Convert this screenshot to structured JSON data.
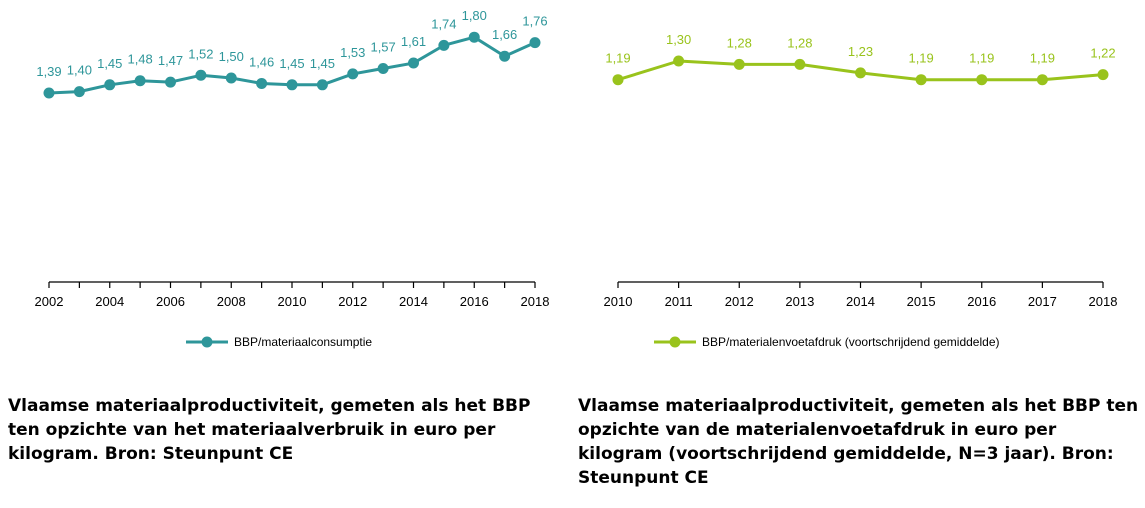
{
  "chart_data": [
    {
      "type": "line",
      "color": "#2e969a",
      "x": [
        "2002",
        "2003",
        "2004",
        "2005",
        "2006",
        "2007",
        "2008",
        "2009",
        "2010",
        "2011",
        "2012",
        "2013",
        "2014",
        "2015",
        "2016",
        "2017",
        "2018"
      ],
      "tick_labels": [
        "2002",
        "2004",
        "2006",
        "2008",
        "2010",
        "2012",
        "2014",
        "2016",
        "2018"
      ],
      "series": [
        {
          "name": "BBP/materiaalconsumptie",
          "values": [
            1.39,
            1.4,
            1.45,
            1.48,
            1.47,
            1.52,
            1.5,
            1.46,
            1.45,
            1.45,
            1.53,
            1.57,
            1.61,
            1.74,
            1.8,
            1.66,
            1.76
          ],
          "labels": [
            "1,39",
            "1,40",
            "1,45",
            "1,48",
            "1,47",
            "1,52",
            "1,50",
            "1,46",
            "1,45",
            "1,45",
            "1,53",
            "1,57",
            "1,61",
            "1,74",
            "1,80",
            "1,66",
            "1,76"
          ]
        }
      ],
      "ylim": [
        0,
        2.0
      ],
      "grid": false,
      "legend_position": "bottom",
      "caption": "Vlaamse materiaalproductiviteit, gemeten als het BBP ten opzichte van het materiaalverbruik in euro per kilogram. Bron: Steunpunt CE"
    },
    {
      "type": "line",
      "color": "#99c31c",
      "x": [
        "2010",
        "2011",
        "2012",
        "2013",
        "2014",
        "2015",
        "2016",
        "2017",
        "2018"
      ],
      "tick_labels": [
        "2010",
        "2011",
        "2012",
        "2013",
        "2014",
        "2015",
        "2016",
        "2017",
        "2018"
      ],
      "series": [
        {
          "name": "BBP/materialenvoetafdruk (voortschrijdend gemiddelde)",
          "values": [
            1.19,
            1.3,
            1.28,
            1.28,
            1.23,
            1.19,
            1.19,
            1.19,
            1.22
          ],
          "labels": [
            "1,19",
            "1,30",
            "1,28",
            "1,28",
            "1,23",
            "1,19",
            "1,19",
            "1,19",
            "1,22"
          ]
        }
      ],
      "ylim": [
        0,
        1.6
      ],
      "grid": false,
      "legend_position": "bottom",
      "caption": "Vlaamse materiaalproductiviteit, gemeten als het BBP ten opzichte van de materialenvoetafdruk in euro per kilogram (voortschrijdend gemiddelde, N=3 jaar). Bron: Steunpunt CE"
    }
  ]
}
